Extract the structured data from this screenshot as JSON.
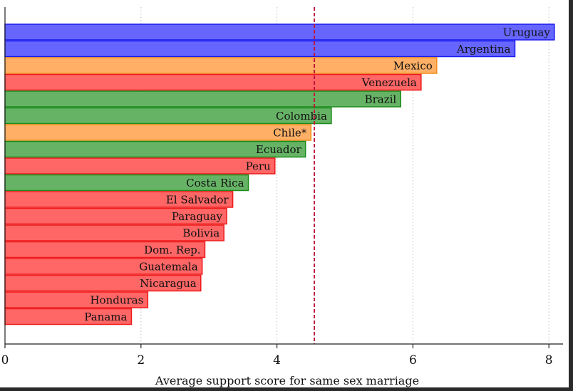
{
  "chart_data": {
    "type": "bar",
    "orientation": "horizontal",
    "xlabel": "Average support score for same sex marriage",
    "xlim": [
      0,
      8.2
    ],
    "xticks": [
      0,
      2,
      4,
      6,
      8
    ],
    "grid": "vertical-dotted",
    "reference_line": {
      "value": 4.55,
      "style": "dashed",
      "color": "#c0143c"
    },
    "categories": [
      "Uruguay",
      "Argentina",
      "Mexico",
      "Venezuela",
      "Brazil",
      "Colombia",
      "Chile*",
      "Ecuador",
      "Peru",
      "Costa Rica",
      "El Salvador",
      "Paraguay",
      "Bolivia",
      "Dom. Rep.",
      "Guatemala",
      "Nicaragua",
      "Honduras",
      "Panama"
    ],
    "values": [
      8.08,
      7.5,
      6.35,
      6.12,
      5.82,
      4.8,
      4.5,
      4.42,
      3.97,
      3.58,
      3.35,
      3.26,
      3.22,
      2.94,
      2.9,
      2.88,
      2.1,
      1.86
    ],
    "groups": [
      "blue",
      "blue",
      "orange",
      "red",
      "green",
      "green",
      "orange",
      "green",
      "red",
      "green",
      "red",
      "red",
      "red",
      "red",
      "red",
      "red",
      "red",
      "red"
    ],
    "colors": {
      "blue": {
        "fill": "#6666ff",
        "stroke": "#1a1aee"
      },
      "orange": {
        "fill": "#ffb066",
        "stroke": "#f08c1a"
      },
      "red": {
        "fill": "#ff6666",
        "stroke": "#ee1a1a"
      },
      "green": {
        "fill": "#66b366",
        "stroke": "#1a8c1a"
      }
    }
  }
}
